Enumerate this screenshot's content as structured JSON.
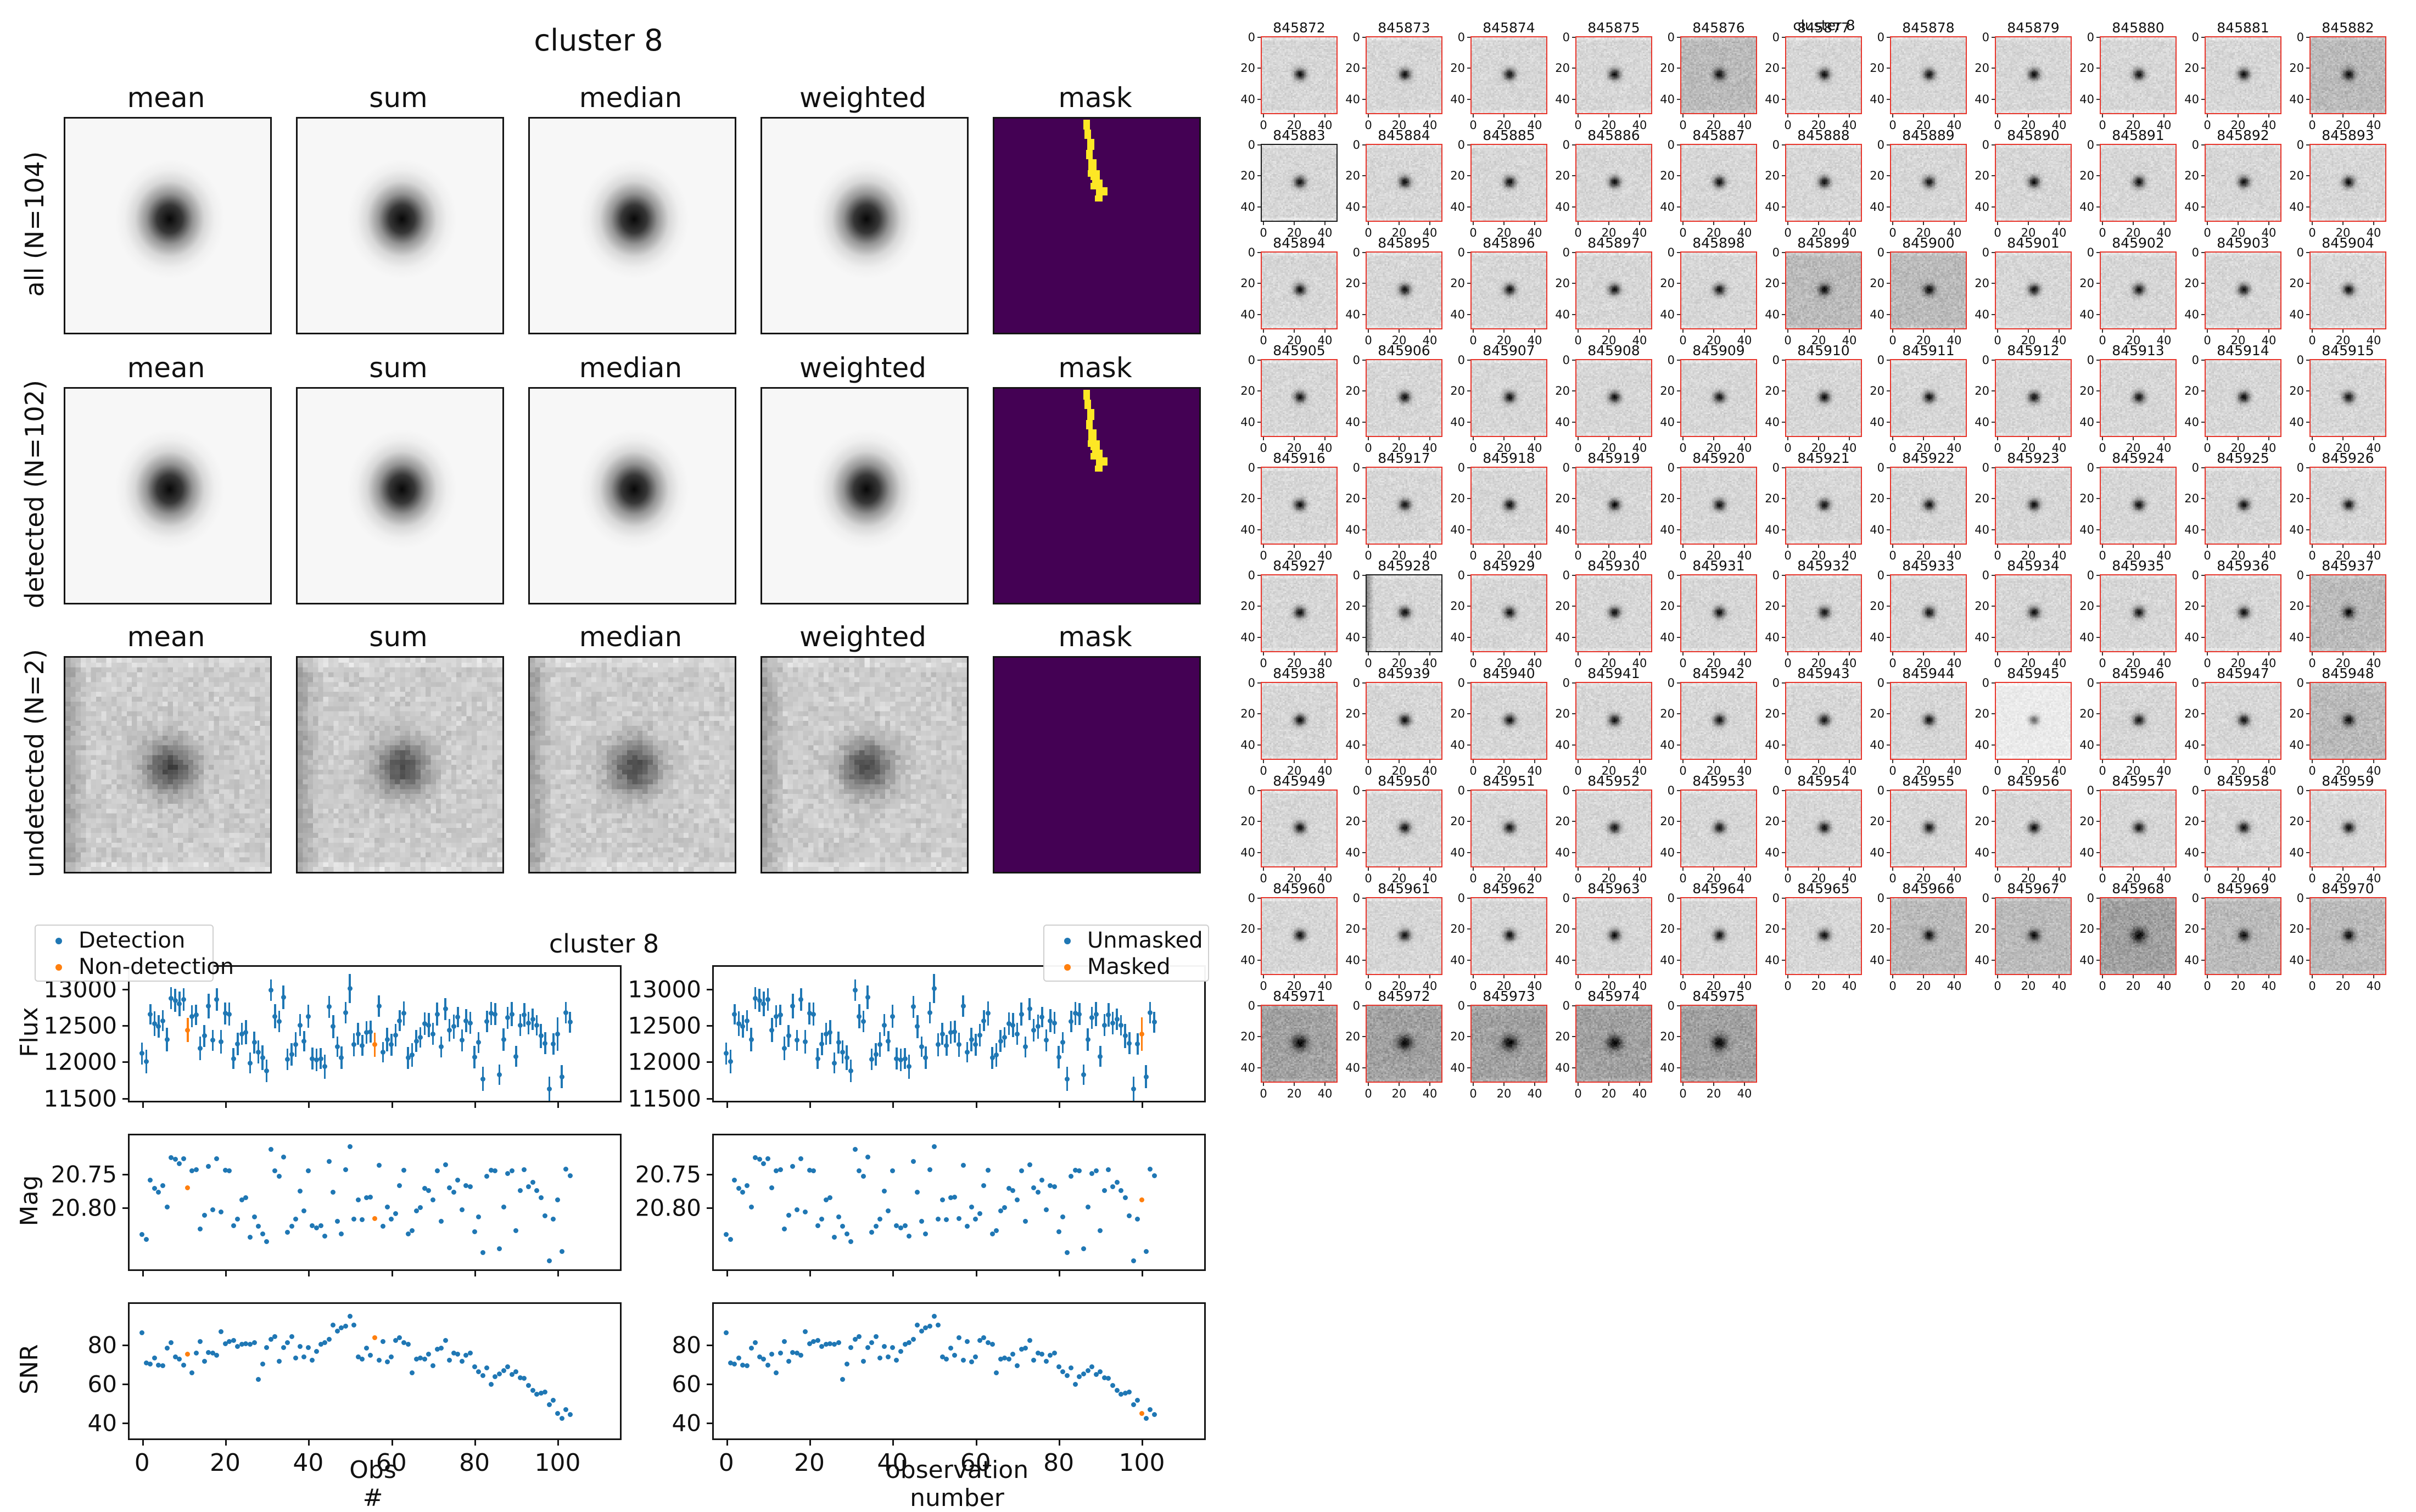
{
  "figure_top_left": {
    "title": "cluster 8",
    "column_titles": [
      "mean",
      "sum",
      "median",
      "weighted",
      "mask"
    ],
    "rows": [
      {
        "label": "all (N=104)",
        "type": "smooth",
        "mask_streak": true
      },
      {
        "label": "detected (N=102)",
        "type": "smooth",
        "mask_streak": true
      },
      {
        "label": "undetected (N=2)",
        "type": "noisy",
        "mask_streak": false
      }
    ],
    "mask_background": "#440154",
    "mask_streak_color": "#fde725",
    "mask_streak_rects": [
      [
        0.435,
        0.005,
        0.032,
        0.046
      ],
      [
        0.44,
        0.05,
        0.032,
        0.046
      ],
      [
        0.452,
        0.095,
        0.036,
        0.05
      ],
      [
        0.448,
        0.145,
        0.032,
        0.046
      ],
      [
        0.458,
        0.19,
        0.04,
        0.05
      ],
      [
        0.455,
        0.24,
        0.02,
        0.032
      ],
      [
        0.468,
        0.24,
        0.048,
        0.046
      ],
      [
        0.478,
        0.285,
        0.05,
        0.04
      ],
      [
        0.47,
        0.3,
        0.025,
        0.032
      ],
      [
        0.497,
        0.32,
        0.055,
        0.04
      ],
      [
        0.49,
        0.358,
        0.038,
        0.03
      ]
    ]
  },
  "figure_bottom_left": {
    "title": "cluster 8",
    "legend_detection": {
      "entries": [
        {
          "label": "Detection",
          "color": "#1f77b4"
        },
        {
          "label": "Non-detection",
          "color": "#ff7f0e"
        }
      ]
    },
    "legend_masked": {
      "entries": [
        {
          "label": "Unmasked",
          "color": "#1f77b4"
        },
        {
          "label": "Masked",
          "color": "#ff7f0e"
        }
      ]
    },
    "row_labels": [
      "Flux",
      "Mag",
      "SNR"
    ],
    "xlabel_left": "Obs #",
    "xlabel_right": "observation number"
  },
  "chart_data": {
    "type": "scatter",
    "title": "cluster 8",
    "xlabel_left": "Obs #",
    "xlabel_right": "observation number",
    "ylabels": [
      "Flux",
      "Mag",
      "SNR"
    ],
    "x_ticks": [
      0,
      20,
      40,
      60,
      80,
      100
    ],
    "x_range": [
      -3,
      115
    ],
    "flux_ticks": [
      13000,
      12500,
      12000,
      11500
    ],
    "flux_range": [
      11460,
      13300
    ],
    "mag_ticks": [
      20.75,
      20.8
    ],
    "mag_range": [
      20.693,
      20.893
    ],
    "mag_axis_inverted": true,
    "snr_ticks": [
      80,
      60,
      40
    ],
    "snr_range": [
      31.8,
      100.8
    ],
    "point_color": "#1f77b4",
    "flag_color": "#ff7f0e",
    "non_detection_idx": [
      11,
      56
    ],
    "masked_idx": [
      100
    ],
    "x": [
      0,
      1,
      2,
      3,
      4,
      5,
      6,
      7,
      8,
      9,
      10,
      11,
      12,
      13,
      14,
      15,
      16,
      17,
      18,
      19,
      20,
      21,
      22,
      23,
      24,
      25,
      26,
      27,
      28,
      29,
      30,
      31,
      32,
      33,
      34,
      35,
      36,
      37,
      38,
      39,
      40,
      41,
      42,
      43,
      44,
      45,
      46,
      47,
      48,
      49,
      50,
      51,
      52,
      53,
      54,
      55,
      56,
      57,
      58,
      59,
      60,
      61,
      62,
      63,
      64,
      65,
      66,
      67,
      68,
      69,
      70,
      71,
      72,
      73,
      74,
      75,
      76,
      77,
      78,
      79,
      80,
      81,
      82,
      83,
      84,
      85,
      86,
      87,
      88,
      89,
      90,
      91,
      92,
      93,
      94,
      95,
      96,
      97,
      98,
      99,
      100,
      101,
      102,
      103
    ],
    "flux": [
      12110,
      12000,
      12650,
      12520,
      12480,
      12560,
      12300,
      12870,
      12840,
      12790,
      12850,
      12430,
      12620,
      12640,
      12180,
      12350,
      12760,
      12290,
      12850,
      12270,
      12660,
      12650,
      12040,
      12240,
      12380,
      12400,
      11980,
      12260,
      12130,
      12050,
      11870,
      12980,
      12620,
      12550,
      12880,
      12030,
      12100,
      12230,
      12500,
      12280,
      12620,
      12040,
      12020,
      12040,
      11930,
      12750,
      12480,
      12200,
      12050,
      12670,
      13000,
      12230,
      12380,
      12220,
      12400,
      12410,
      12230,
      12760,
      12130,
      12300,
      12230,
      12360,
      12560,
      12660,
      12050,
      12090,
      12280,
      12330,
      12520,
      12500,
      12380,
      12650,
      12200,
      12720,
      12430,
      12480,
      12610,
      12290,
      12560,
      12530,
      12060,
      12260,
      11760,
      12550,
      12660,
      12650,
      11820,
      12300,
      12600,
      12650,
      12070,
      12500,
      12640,
      12530,
      12580,
      12500,
      12350,
      12250,
      11620,
      12240,
      12380,
      11790,
      12670,
      12540
    ],
    "flux_err": [
      150,
      160,
      140,
      170,
      155,
      145,
      165,
      150,
      160,
      170,
      155,
      165,
      150,
      140,
      160,
      150,
      170,
      145,
      155,
      165,
      150,
      160,
      145,
      155,
      150,
      165,
      140,
      150,
      160,
      170,
      155,
      150,
      165,
      145,
      160,
      150,
      155,
      170,
      150,
      140,
      160,
      150,
      155,
      145,
      165,
      150,
      160,
      140,
      155,
      150,
      200,
      160,
      150,
      145,
      155,
      150,
      165,
      150,
      140,
      160,
      150,
      155,
      145,
      165,
      150,
      160,
      150,
      140,
      155,
      165,
      150,
      160,
      145,
      150,
      155,
      165,
      140,
      150,
      160,
      150,
      155,
      145,
      165,
      150,
      160,
      150,
      140,
      155,
      150,
      165,
      145,
      150,
      160,
      155,
      150,
      140,
      165,
      150,
      175,
      150,
      230,
      160,
      150,
      145
    ],
    "mag": [
      20.841,
      20.848,
      20.76,
      20.772,
      20.778,
      20.768,
      20.8,
      20.726,
      20.729,
      20.735,
      20.728,
      20.771,
      20.746,
      20.744,
      20.833,
      20.812,
      20.739,
      20.804,
      20.728,
      20.807,
      20.745,
      20.746,
      20.828,
      20.818,
      20.789,
      20.786,
      20.845,
      20.815,
      20.829,
      20.84,
      20.852,
      20.714,
      20.746,
      20.754,
      20.725,
      20.838,
      20.829,
      20.818,
      20.776,
      20.806,
      20.746,
      20.828,
      20.831,
      20.828,
      20.843,
      20.732,
      20.778,
      20.821,
      20.84,
      20.744,
      20.71,
      20.818,
      20.789,
      20.819,
      20.786,
      20.785,
      20.817,
      20.738,
      20.829,
      20.8,
      20.818,
      20.81,
      20.768,
      20.745,
      20.84,
      20.835,
      20.806,
      20.801,
      20.772,
      20.775,
      20.789,
      20.746,
      20.821,
      20.737,
      20.771,
      20.778,
      20.76,
      20.804,
      20.768,
      20.77,
      20.837,
      20.815,
      20.868,
      20.754,
      20.745,
      20.746,
      20.862,
      20.8,
      20.75,
      20.746,
      20.835,
      20.775,
      20.744,
      20.77,
      20.763,
      20.775,
      20.786,
      20.813,
      20.88,
      20.818,
      20.789,
      20.866,
      20.743,
      20.753
    ],
    "snr": [
      86.0,
      70.5,
      70.0,
      73.0,
      69.5,
      69.0,
      78.0,
      81.0,
      73.5,
      72.5,
      69.5,
      75.0,
      65.5,
      75.5,
      81.5,
      71.5,
      76.0,
      75.5,
      74.5,
      86.5,
      80.5,
      81.5,
      82.0,
      79.0,
      80.0,
      80.5,
      80.0,
      81.0,
      62.0,
      70.0,
      78.5,
      82.5,
      84.0,
      71.5,
      78.5,
      81.0,
      84.0,
      73.0,
      79.0,
      73.5,
      78.5,
      72.0,
      76.5,
      80.0,
      81.0,
      82.5,
      90.0,
      87.0,
      88.5,
      89.5,
      94.5,
      90.0,
      73.5,
      72.5,
      78.0,
      74.5,
      83.5,
      72.0,
      81.5,
      71.0,
      73.5,
      82.0,
      83.5,
      81.0,
      80.0,
      65.5,
      72.5,
      73.0,
      72.5,
      75.0,
      69.0,
      77.5,
      78.0,
      82.0,
      72.0,
      75.5,
      75.0,
      71.5,
      74.5,
      75.5,
      68.5,
      66.0,
      64.0,
      68.0,
      59.5,
      63.5,
      65.0,
      66.5,
      68.5,
      64.5,
      66.0,
      63.0,
      62.5,
      59.0,
      56.5,
      54.5,
      55.0,
      55.5,
      49.0,
      51.5,
      44.5,
      42.0,
      46.5,
      44.0
    ]
  },
  "figure_right": {
    "title": "cluster 8",
    "axis_tick_labels": [
      "0",
      "20",
      "40"
    ],
    "border_color": "#e8342a",
    "black_border_color": "#1a1a1a",
    "stamp_ids": [
      845872,
      845873,
      845874,
      845875,
      845876,
      845877,
      845878,
      845879,
      845880,
      845881,
      845882,
      845883,
      845884,
      845885,
      845886,
      845887,
      845888,
      845889,
      845890,
      845891,
      845892,
      845893,
      845894,
      845895,
      845896,
      845897,
      845898,
      845899,
      845900,
      845901,
      845902,
      845903,
      845904,
      845905,
      845906,
      845907,
      845908,
      845909,
      845910,
      845911,
      845912,
      845913,
      845914,
      845915,
      845916,
      845917,
      845918,
      845919,
      845920,
      845921,
      845922,
      845923,
      845924,
      845925,
      845926,
      845927,
      845928,
      845929,
      845930,
      845931,
      845932,
      845933,
      845934,
      845935,
      845936,
      845937,
      845938,
      845939,
      845940,
      845941,
      845942,
      845943,
      845944,
      845945,
      845946,
      845947,
      845948,
      845949,
      845950,
      845951,
      845952,
      845953,
      845954,
      845955,
      845956,
      845957,
      845958,
      845959,
      845960,
      845961,
      845962,
      845963,
      845964,
      845965,
      845966,
      845967,
      845968,
      845969,
      845970,
      845971,
      845972,
      845973,
      845974,
      845975
    ],
    "black_border_ids": [
      845883,
      845928
    ],
    "dark_ids": [
      845876,
      845882,
      845899,
      845900,
      845937,
      845948,
      845966,
      845967,
      845969,
      845970
    ],
    "darkest_ids": [
      845968,
      845971,
      845972,
      845973,
      845974,
      845975
    ],
    "light_ids": [
      845945
    ],
    "left_band_ids": [
      845928
    ]
  }
}
